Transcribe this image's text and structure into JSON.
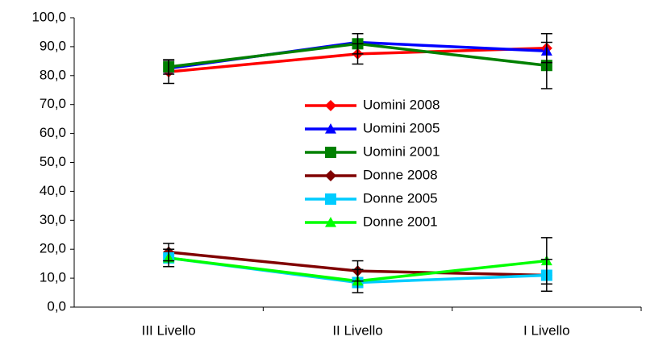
{
  "chart_data": {
    "type": "line",
    "categories": [
      "III Livello",
      "II Livello",
      "I Livello"
    ],
    "series": [
      {
        "name": "Uomini 2008",
        "color": "#ff0000",
        "marker": "diamond",
        "values": [
          81.3,
          87.5,
          89.5
        ],
        "errors": [
          4,
          3.5,
          5
        ]
      },
      {
        "name": "Uomini 2005",
        "color": "#0000ff",
        "marker": "triangle",
        "values": [
          82.5,
          91.5,
          88.5
        ]
      },
      {
        "name": "Uomini 2001",
        "color": "#008000",
        "marker": "square",
        "values": [
          83,
          91,
          83.5
        ],
        "errors": [
          2.5,
          3.5,
          8
        ]
      },
      {
        "name": "Donne 2008",
        "color": "#800000",
        "marker": "diamond",
        "values": [
          19,
          12.5,
          11
        ],
        "errors": [
          3,
          3.5,
          5.5
        ]
      },
      {
        "name": "Donne 2005",
        "color": "#00ccff",
        "marker": "square",
        "values": [
          17,
          8.5,
          11
        ]
      },
      {
        "name": "Donne 2001",
        "color": "#00ff00",
        "marker": "triangle",
        "values": [
          17,
          9,
          16
        ],
        "errors": [
          3,
          4,
          8
        ]
      }
    ],
    "ylim": [
      0,
      100
    ],
    "yticks": [
      {
        "value": 0,
        "label": "0,0"
      },
      {
        "value": 10,
        "label": "10,0"
      },
      {
        "value": 20,
        "label": "20,0"
      },
      {
        "value": 30,
        "label": "30,0"
      },
      {
        "value": 40,
        "label": "40,0"
      },
      {
        "value": 50,
        "label": "50,0"
      },
      {
        "value": 60,
        "label": "60,0"
      },
      {
        "value": 70,
        "label": "70,0"
      },
      {
        "value": 80,
        "label": "80,0"
      },
      {
        "value": 90,
        "label": "90,0"
      },
      {
        "value": 100,
        "label": "100,0"
      }
    ],
    "grid": false
  }
}
